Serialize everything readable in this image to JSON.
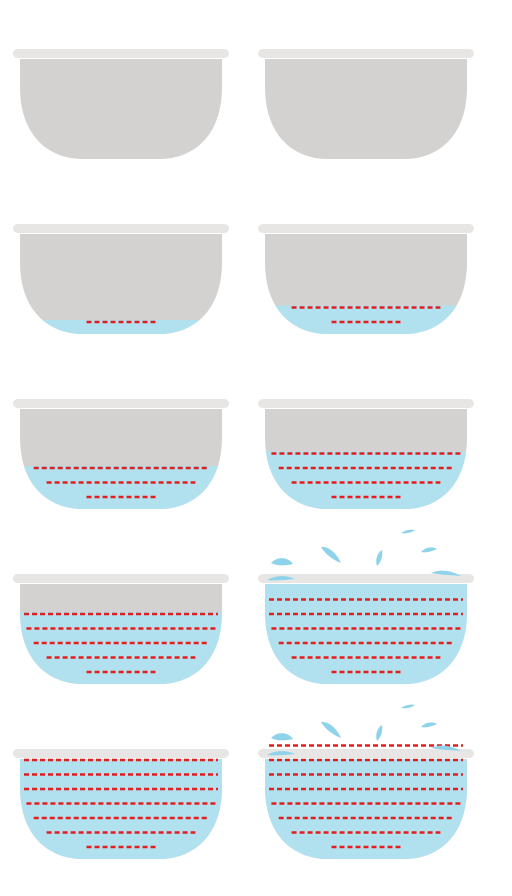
{
  "colors": {
    "pot": "#d3d2d1",
    "rim": "#e7e6e5",
    "water": "#b1e0ef",
    "fill_line": "#e21f1f",
    "splash": "#8fd3ea"
  },
  "pots": [
    {
      "lines": 0,
      "splash": false
    },
    {
      "lines": 0,
      "splash": false
    },
    {
      "lines": 1,
      "splash": false
    },
    {
      "lines": 2,
      "splash": false
    },
    {
      "lines": 3,
      "splash": false
    },
    {
      "lines": 4,
      "splash": false
    },
    {
      "lines": 5,
      "splash": false
    },
    {
      "lines": 6,
      "splash": true
    },
    {
      "lines": 7,
      "splash": false
    },
    {
      "lines": 8,
      "splash": true
    }
  ]
}
